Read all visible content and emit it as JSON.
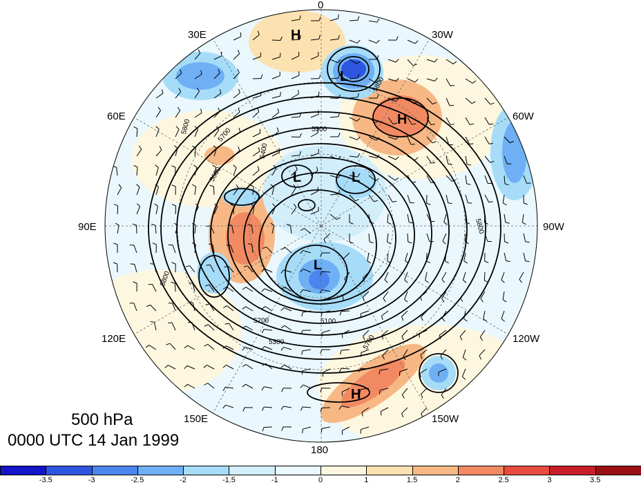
{
  "meridians": {
    "top": "0",
    "bottom": "180",
    "left": "90E",
    "right": "90W",
    "tl1": "30E",
    "tl2": "60E",
    "tr1": "30W",
    "tr2": "60W",
    "bl1": "120E",
    "bl2": "150E",
    "br1": "120W",
    "br2": "150W"
  },
  "title": {
    "level": "500 hPa",
    "time": "0000 UTC 14 Jan 1999"
  },
  "pressure_centers": {
    "h1": "H",
    "h2": "H",
    "h3": "H",
    "l1": "L",
    "l2": "L",
    "l3": "L",
    "l4": "L"
  },
  "contour_labels": {
    "c5800a": "5800",
    "c5800b": "5800",
    "c5800c": "5800",
    "c5800d": "5800",
    "c5500": "5500",
    "c5700a": "5700",
    "c5700b": "5700",
    "c5600": "5600",
    "c5400": "5400",
    "c5200": "5200",
    "c5300": "5300",
    "c5100": "5100"
  },
  "colorbar": {
    "ticks": [
      "-3.5",
      "-3",
      "-2.5",
      "-2",
      "-1.5",
      "-1",
      "0",
      "1",
      "1.5",
      "2",
      "2.5",
      "3",
      "3.5"
    ],
    "colors": [
      "#1414c8",
      "#2e55e0",
      "#4a86ee",
      "#6fb0f4",
      "#a6dcf8",
      "#d2eefb",
      "#eaf7fd",
      "#fdf7e0",
      "#fbe2b0",
      "#f7b885",
      "#f18a62",
      "#e84b3f",
      "#c81e2a",
      "#9b0e16"
    ]
  }
}
